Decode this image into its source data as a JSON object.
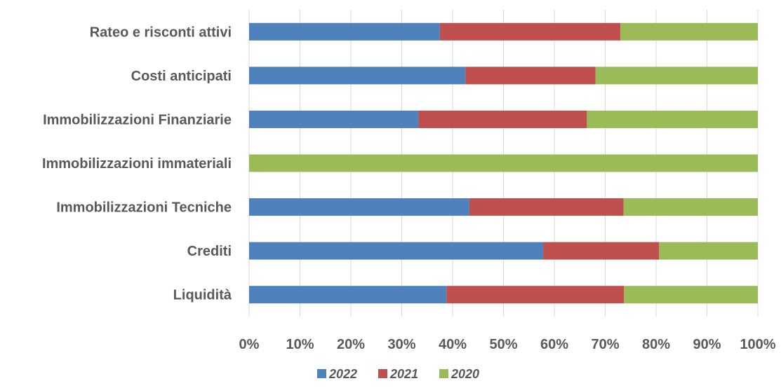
{
  "chart_data": {
    "type": "bar",
    "orientation": "horizontal",
    "stacking": "percent",
    "categories": [
      "Rateo e risconti attivi",
      "Costi anticipati",
      "Immobilizzazioni Finanziarie",
      "Immobilizzazioni immateriali",
      "Immobilizzazioni Tecniche",
      "Crediti",
      "Liquidità"
    ],
    "series": [
      {
        "name": "2022",
        "color": "#4f81bd",
        "values": [
          37.5,
          42.5,
          33.3,
          0,
          43.3,
          57.8,
          38.8
        ]
      },
      {
        "name": "2021",
        "color": "#c0504d",
        "values": [
          35.5,
          25.6,
          33.1,
          0,
          30.3,
          22.8,
          34.9
        ]
      },
      {
        "name": "2020",
        "color": "#9bbb59",
        "values": [
          27.0,
          31.9,
          33.6,
          100,
          26.4,
          19.4,
          26.3
        ]
      }
    ],
    "xlim": [
      0,
      100
    ],
    "x_ticks": [
      "0%",
      "10%",
      "20%",
      "30%",
      "40%",
      "50%",
      "60%",
      "70%",
      "80%",
      "90%",
      "100%"
    ],
    "grid": "vertical",
    "legend_position": "bottom"
  }
}
